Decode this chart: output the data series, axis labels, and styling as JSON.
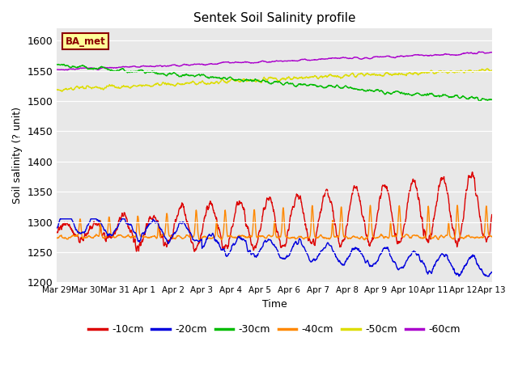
{
  "title": "Sentek Soil Salinity profile",
  "xlabel": "Time",
  "ylabel": "Soil salinity (? unit)",
  "ylim": [
    1200,
    1620
  ],
  "yticks": [
    1200,
    1250,
    1300,
    1350,
    1400,
    1450,
    1500,
    1550,
    1600
  ],
  "legend_label": "BA_met",
  "legend_entries": [
    "-10cm",
    "-20cm",
    "-30cm",
    "-40cm",
    "-50cm",
    "-60cm"
  ],
  "colors": {
    "-10cm": "#dd0000",
    "-20cm": "#0000dd",
    "-30cm": "#00bb00",
    "-40cm": "#ff8800",
    "-50cm": "#dddd00",
    "-60cm": "#aa00cc"
  },
  "background_color": "#e8e8e8",
  "n_points": 1500,
  "xtick_labels": [
    "Mar 29",
    "Mar 30",
    "Mar 31",
    "Apr 1",
    "Apr 2",
    "Apr 3",
    "Apr 4",
    "Apr 5",
    "Apr 6",
    "Apr 7",
    "Apr 8",
    "Apr 9",
    "Apr 10",
    "Apr 11",
    "Apr 12",
    "Apr 13"
  ]
}
